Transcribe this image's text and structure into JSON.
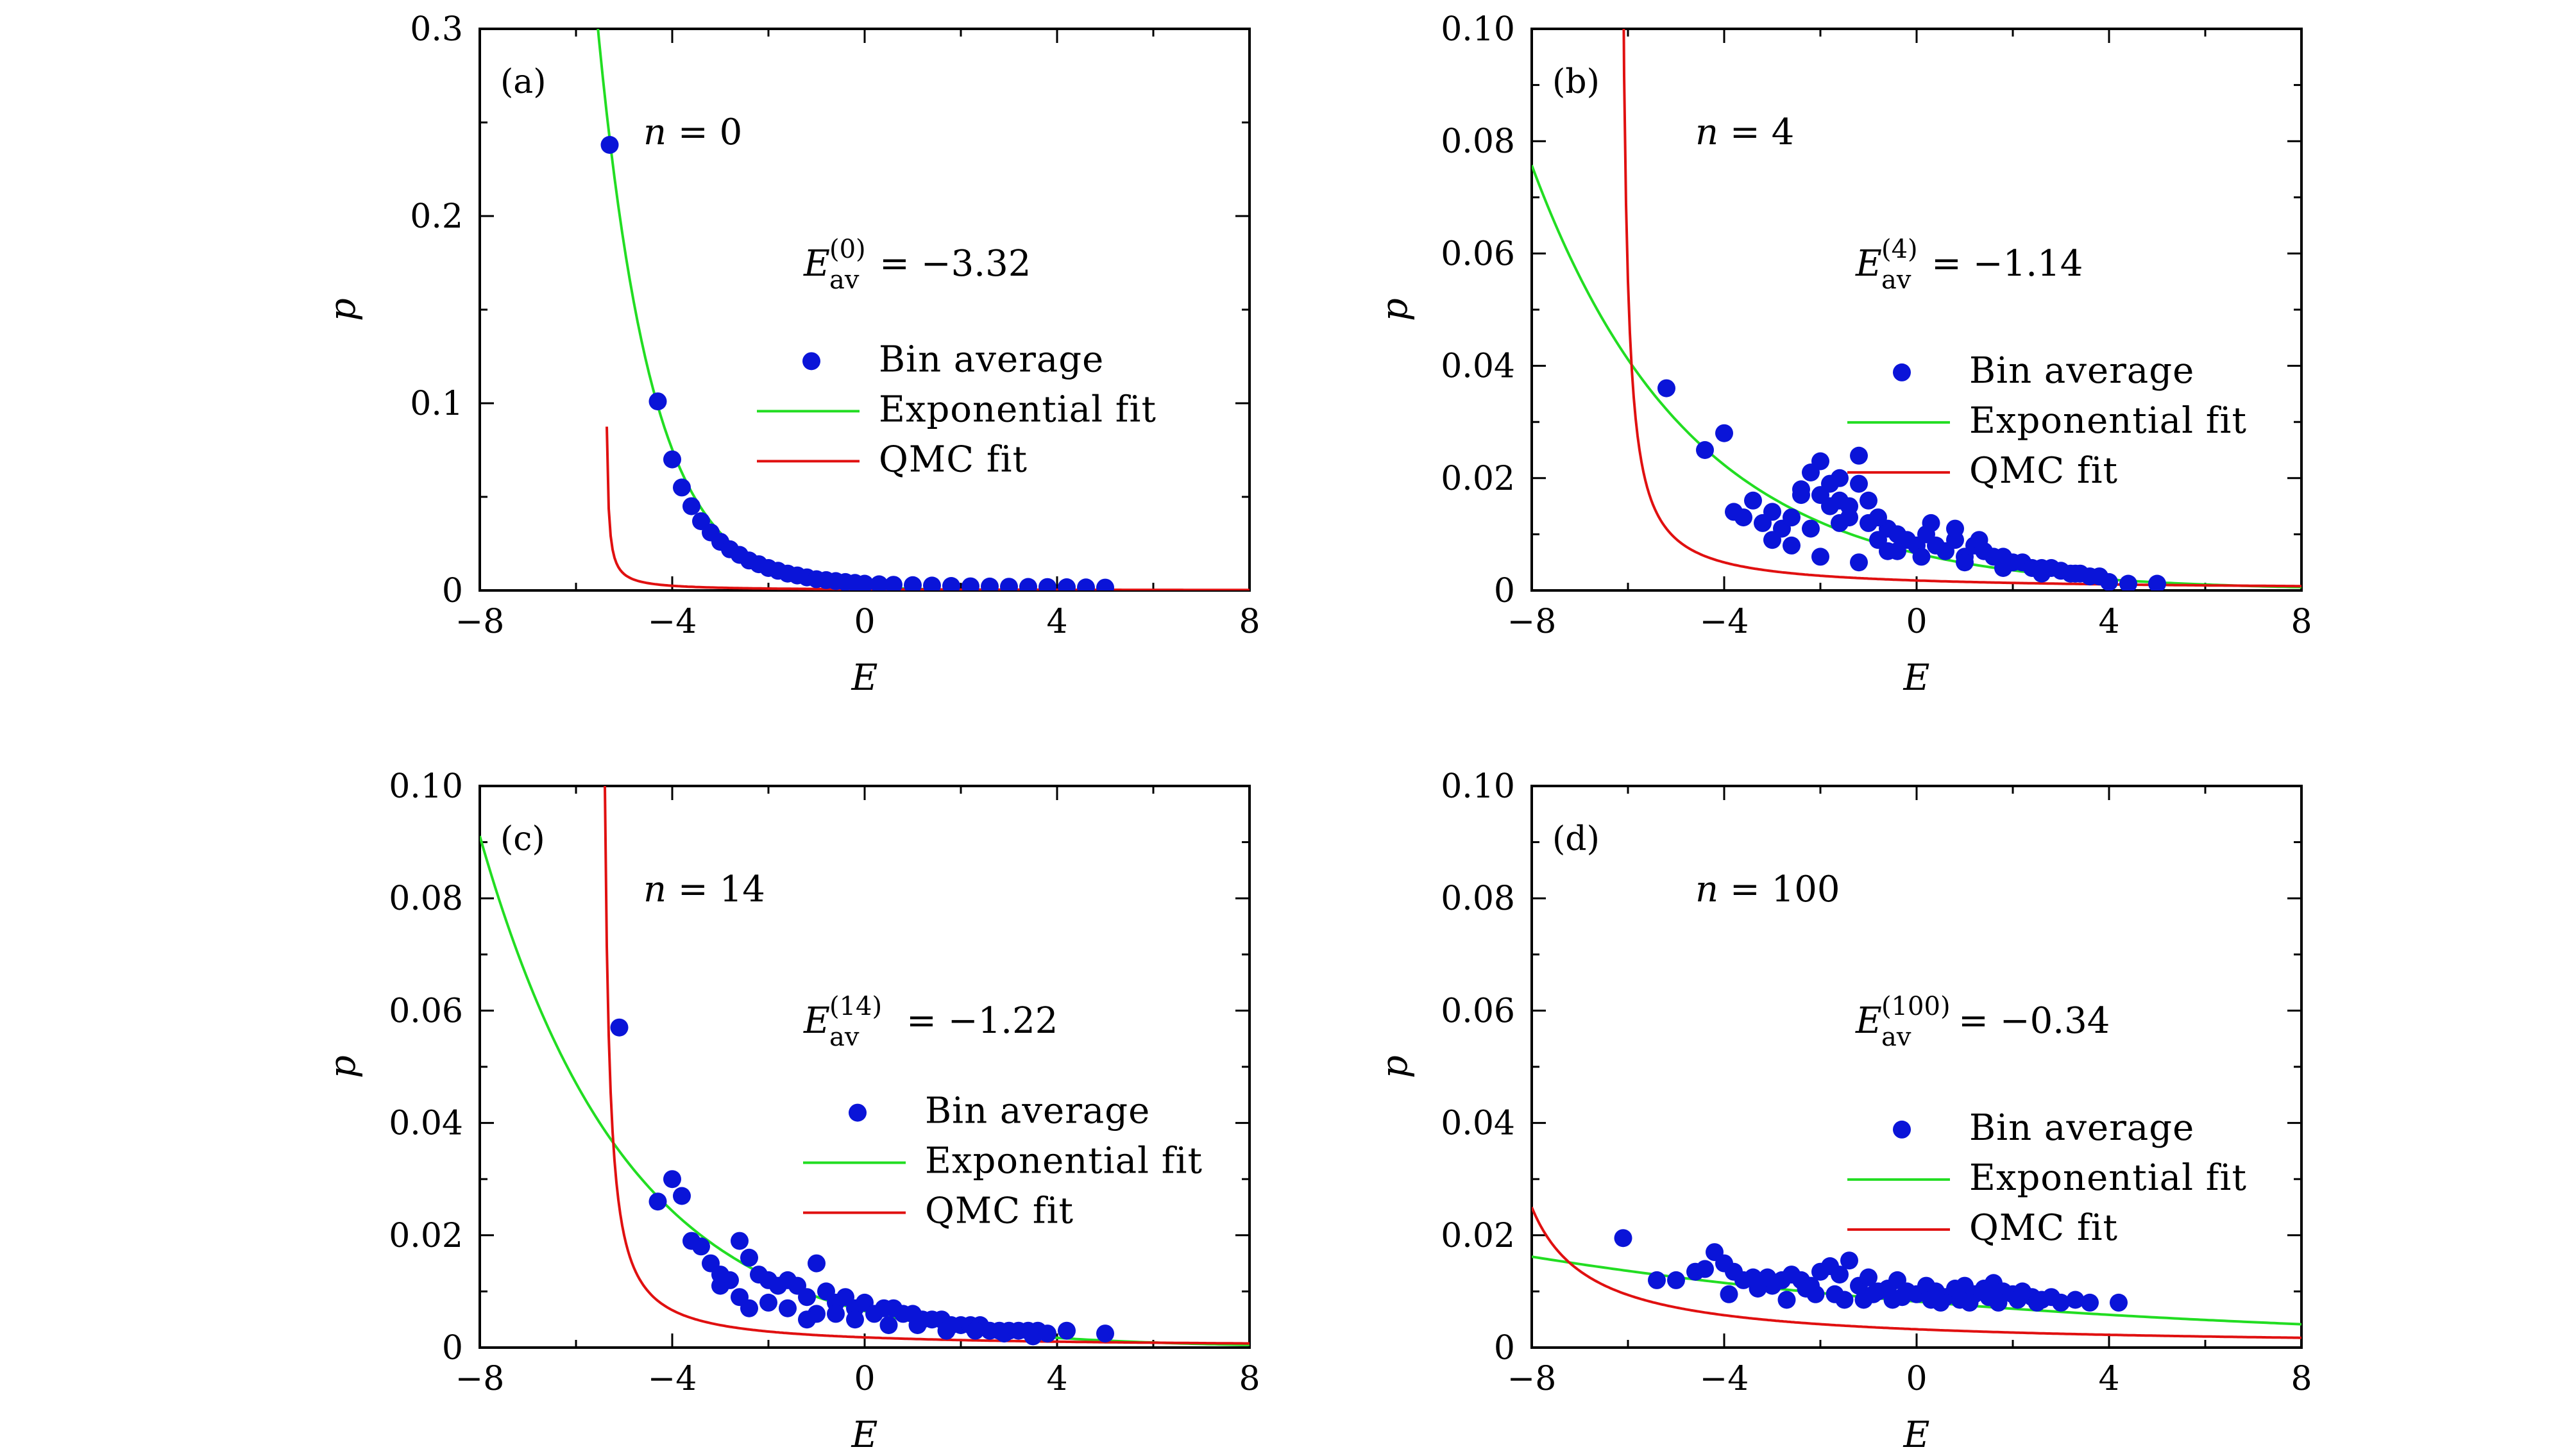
{
  "colors": {
    "points": "#0a14d8",
    "exponential": "#22dd22",
    "qmc": "#e01010",
    "axes": "#000000"
  },
  "legend": {
    "bin": "Bin average",
    "exp": "Exponential fit",
    "qmc": "QMC fit"
  },
  "chart_data": [
    {
      "type": "scatter",
      "panel": "(a)",
      "annotation_n": "n = 0",
      "annotation_e": "E av (0) = −3.32",
      "n_value": "0",
      "e_super": "(0)",
      "e_value": "−3.32",
      "xlabel": "E",
      "ylabel": "p",
      "xlim": [
        -8,
        8
      ],
      "ylim": [
        0,
        0.3
      ],
      "xticks": [
        -8,
        -4,
        0,
        4,
        8
      ],
      "xtick_labels": [
        "−8",
        "−4",
        "0",
        "4",
        "8"
      ],
      "yticks": [
        0,
        0.1,
        0.2,
        0.3
      ],
      "ytick_labels": [
        "0",
        "0.1",
        "0.2",
        "0.3"
      ],
      "legend_position": "center-right",
      "series": [
        {
          "name": "Bin average",
          "kind": "points",
          "x": [
            -5.3,
            -4.3,
            -4.0,
            -3.8,
            -3.6,
            -3.4,
            -3.2,
            -3.0,
            -2.8,
            -2.6,
            -2.4,
            -2.2,
            -2.0,
            -1.8,
            -1.6,
            -1.4,
            -1.2,
            -1.0,
            -0.8,
            -0.6,
            -0.4,
            -0.2,
            0.0,
            0.3,
            0.6,
            1.0,
            1.4,
            1.8,
            2.2,
            2.6,
            3.0,
            3.4,
            3.8,
            4.2,
            4.6,
            5.0
          ],
          "y": [
            0.238,
            0.101,
            0.07,
            0.055,
            0.045,
            0.037,
            0.031,
            0.026,
            0.022,
            0.019,
            0.016,
            0.014,
            0.012,
            0.0105,
            0.009,
            0.008,
            0.007,
            0.006,
            0.0055,
            0.005,
            0.0045,
            0.004,
            0.0036,
            0.0033,
            0.003,
            0.0028,
            0.0026,
            0.0024,
            0.0022,
            0.0021,
            0.002,
            0.0019,
            0.0018,
            0.0017,
            0.0016,
            0.0015
          ]
        },
        {
          "name": "Exponential fit",
          "kind": "exp",
          "A": 0.0021,
          "b": 0.895
        },
        {
          "name": "QMC fit",
          "kind": "qmc",
          "C": 0.0035,
          "x0": -5.4
        }
      ]
    },
    {
      "type": "scatter",
      "panel": "(b)",
      "annotation_n": "n = 4",
      "annotation_e": "E av (4) = −1.14",
      "n_value": "4",
      "e_super": "(4)",
      "e_value": "−1.14",
      "xlabel": "E",
      "ylabel": "p",
      "xlim": [
        -8,
        8
      ],
      "ylim": [
        0,
        0.1
      ],
      "xticks": [
        -8,
        -4,
        0,
        4,
        8
      ],
      "xtick_labels": [
        "−8",
        "−4",
        "0",
        "4",
        "8"
      ],
      "yticks": [
        0,
        0.02,
        0.04,
        0.06,
        0.08,
        0.1
      ],
      "ytick_labels": [
        "0",
        "0.02",
        "0.04",
        "0.06",
        "0.08",
        "0.10"
      ],
      "legend_position": "center-right",
      "series": [
        {
          "name": "Bin average",
          "kind": "points",
          "x": [
            -5.2,
            -4.4,
            -4.0,
            -3.8,
            -3.6,
            -3.4,
            -3.2,
            -3.0,
            -2.8,
            -2.6,
            -2.4,
            -2.2,
            -2.0,
            -1.8,
            -1.6,
            -1.4,
            -1.2,
            -1.0,
            -0.8,
            -0.6,
            -0.4,
            -0.2,
            0.0,
            0.2,
            0.4,
            0.6,
            0.8,
            1.0,
            1.2,
            1.4,
            1.6,
            1.8,
            2.0,
            2.2,
            2.4,
            2.6,
            2.8,
            3.0,
            3.2,
            3.4,
            3.6,
            3.8,
            4.0,
            4.4,
            5.0,
            -2.4,
            -2.0,
            -1.6,
            -1.2,
            -1.8,
            -2.2,
            -1.4,
            -2.6,
            -1.0,
            -3.0,
            -0.6,
            -2.0,
            -1.6,
            -0.8,
            0.3,
            0.8,
            1.3,
            -1.2,
            -0.4,
            0.1,
            1.0,
            1.8,
            2.6,
            3.3
          ],
          "y": [
            0.036,
            0.025,
            0.028,
            0.014,
            0.013,
            0.016,
            0.012,
            0.014,
            0.011,
            0.013,
            0.017,
            0.021,
            0.023,
            0.019,
            0.016,
            0.013,
            0.024,
            0.012,
            0.009,
            0.011,
            0.01,
            0.009,
            0.008,
            0.01,
            0.008,
            0.007,
            0.009,
            0.006,
            0.008,
            0.007,
            0.006,
            0.006,
            0.005,
            0.005,
            0.004,
            0.004,
            0.004,
            0.0035,
            0.003,
            0.003,
            0.0025,
            0.0025,
            0.0015,
            0.0012,
            0.0012,
            0.018,
            0.017,
            0.02,
            0.019,
            0.015,
            0.011,
            0.015,
            0.008,
            0.016,
            0.009,
            0.007,
            0.006,
            0.012,
            0.013,
            0.012,
            0.011,
            0.009,
            0.005,
            0.007,
            0.006,
            0.005,
            0.004,
            0.003,
            0.003
          ]
        },
        {
          "name": "Exponential fit",
          "kind": "exp",
          "A": 0.0066,
          "b": 0.305
        },
        {
          "name": "QMC fit",
          "kind": "qmc",
          "C": 0.011,
          "x0": -6.2
        }
      ]
    },
    {
      "type": "scatter",
      "panel": "(c)",
      "annotation_n": "n = 14",
      "annotation_e": "E av (14) = −1.22",
      "n_value": "14",
      "e_super": "(14)",
      "e_value": "−1.22",
      "xlabel": "E",
      "ylabel": "p",
      "xlim": [
        -8,
        8
      ],
      "ylim": [
        0,
        0.1
      ],
      "xticks": [
        -8,
        -4,
        0,
        4,
        8
      ],
      "xtick_labels": [
        "−8",
        "−4",
        "0",
        "4",
        "8"
      ],
      "yticks": [
        0,
        0.02,
        0.04,
        0.06,
        0.08,
        0.1
      ],
      "ytick_labels": [
        "0",
        "0.02",
        "0.04",
        "0.06",
        "0.08",
        "0.10"
      ],
      "legend_position": "center-right",
      "series": [
        {
          "name": "Bin average",
          "kind": "points",
          "x": [
            -5.1,
            -4.3,
            -4.0,
            -3.8,
            -3.6,
            -3.4,
            -3.2,
            -3.0,
            -2.8,
            -2.6,
            -2.4,
            -2.2,
            -2.0,
            -1.8,
            -1.6,
            -1.4,
            -1.2,
            -1.0,
            -0.8,
            -0.6,
            -0.4,
            -0.2,
            0.0,
            0.2,
            0.4,
            0.6,
            0.8,
            1.0,
            1.2,
            1.4,
            1.6,
            1.8,
            2.0,
            2.2,
            2.4,
            2.6,
            2.8,
            3.0,
            3.2,
            3.4,
            3.6,
            3.8,
            4.2,
            5.0,
            -2.6,
            -2.0,
            -1.0,
            -0.6,
            -1.6,
            -2.4,
            -3.0,
            -1.2,
            -0.2,
            0.5,
            1.1,
            1.7,
            2.3,
            2.9,
            3.5
          ],
          "y": [
            0.057,
            0.026,
            0.03,
            0.027,
            0.019,
            0.018,
            0.015,
            0.011,
            0.012,
            0.019,
            0.016,
            0.013,
            0.012,
            0.011,
            0.012,
            0.011,
            0.009,
            0.015,
            0.01,
            0.008,
            0.009,
            0.007,
            0.008,
            0.006,
            0.007,
            0.007,
            0.006,
            0.006,
            0.005,
            0.005,
            0.005,
            0.004,
            0.004,
            0.004,
            0.004,
            0.003,
            0.003,
            0.003,
            0.003,
            0.003,
            0.003,
            0.0025,
            0.003,
            0.0025,
            0.009,
            0.008,
            0.006,
            0.006,
            0.007,
            0.007,
            0.013,
            0.005,
            0.005,
            0.004,
            0.004,
            0.003,
            0.003,
            0.0025,
            0.002
          ]
        },
        {
          "name": "Exponential fit",
          "kind": "exp",
          "A": 0.0065,
          "b": 0.33
        },
        {
          "name": "QMC fit",
          "kind": "qmc",
          "C": 0.01,
          "x0": -5.5
        }
      ]
    },
    {
      "type": "scatter",
      "panel": "(d)",
      "annotation_n": "n = 100",
      "annotation_e": "E av (100) = −0.34",
      "n_value": "100",
      "e_super": "(100)",
      "e_value": "−0.34",
      "xlabel": "E",
      "ylabel": "p",
      "xlim": [
        -8,
        8
      ],
      "ylim": [
        0,
        0.1
      ],
      "xticks": [
        -8,
        -4,
        0,
        4,
        8
      ],
      "xtick_labels": [
        "−8",
        "−4",
        "0",
        "4",
        "8"
      ],
      "yticks": [
        0,
        0.02,
        0.04,
        0.06,
        0.08,
        0.1
      ],
      "ytick_labels": [
        "0",
        "0.02",
        "0.04",
        "0.06",
        "0.08",
        "0.10"
      ],
      "legend_position": "center-right",
      "series": [
        {
          "name": "Bin average",
          "kind": "points",
          "x": [
            -6.1,
            -5.4,
            -5.0,
            -4.6,
            -4.4,
            -4.2,
            -4.0,
            -3.8,
            -3.6,
            -3.4,
            -3.2,
            -3.0,
            -2.8,
            -2.6,
            -2.4,
            -2.2,
            -2.0,
            -1.8,
            -1.6,
            -1.4,
            -1.2,
            -1.0,
            -0.8,
            -0.6,
            -0.4,
            -0.2,
            0.0,
            0.2,
            0.4,
            0.6,
            0.8,
            1.0,
            1.2,
            1.4,
            1.6,
            1.8,
            2.0,
            2.2,
            2.4,
            2.6,
            2.8,
            3.0,
            3.3,
            3.6,
            4.2,
            -3.9,
            -3.3,
            -2.7,
            -2.1,
            -1.5,
            -0.9,
            -0.3,
            0.3,
            0.9,
            1.5,
            2.1,
            -3.1,
            -2.3,
            -1.7,
            -1.1,
            -0.5,
            0.5,
            1.1,
            1.7,
            2.5
          ],
          "y": [
            0.0195,
            0.012,
            0.012,
            0.0135,
            0.014,
            0.017,
            0.015,
            0.0135,
            0.012,
            0.0125,
            0.0115,
            0.011,
            0.012,
            0.013,
            0.012,
            0.011,
            0.0135,
            0.0145,
            0.013,
            0.0155,
            0.011,
            0.0125,
            0.01,
            0.0105,
            0.012,
            0.01,
            0.0095,
            0.011,
            0.01,
            0.009,
            0.0105,
            0.011,
            0.0095,
            0.0105,
            0.0115,
            0.01,
            0.0095,
            0.01,
            0.009,
            0.0085,
            0.009,
            0.008,
            0.0085,
            0.008,
            0.008,
            0.0095,
            0.0105,
            0.0085,
            0.0095,
            0.0085,
            0.0095,
            0.009,
            0.0085,
            0.0085,
            0.009,
            0.0085,
            0.0125,
            0.0105,
            0.0095,
            0.0085,
            0.0085,
            0.008,
            0.008,
            0.008,
            0.008
          ]
        },
        {
          "name": "Exponential fit",
          "kind": "exp",
          "A": 0.0082,
          "b": 0.085
        },
        {
          "name": "QMC fit",
          "kind": "qmc",
          "C": 0.03,
          "x0": -9.2
        }
      ]
    }
  ]
}
